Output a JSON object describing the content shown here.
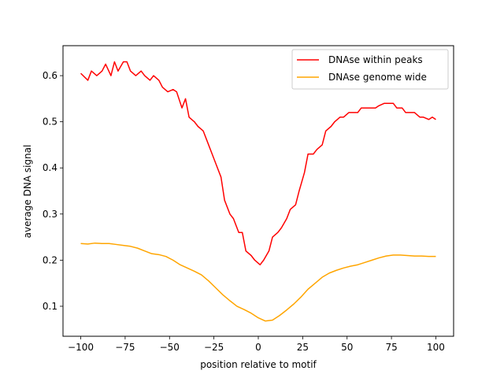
{
  "chart_data": {
    "type": "line",
    "xlabel": "position relative to motif",
    "ylabel": "average DNA signal",
    "xlim": [
      -110,
      110
    ],
    "ylim": [
      0.035,
      0.665
    ],
    "xticks": [
      -100,
      -75,
      -50,
      -25,
      0,
      25,
      50,
      75,
      100
    ],
    "yticks": [
      0.1,
      0.2,
      0.3,
      0.4,
      0.5,
      0.6
    ],
    "grid": false,
    "legend_position": "top-right",
    "series": [
      {
        "name": "DNAse within peaks",
        "color": "#ff0000",
        "x": [
          -100,
          -96,
          -94,
          -91,
          -88,
          -86,
          -83,
          -81,
          -79,
          -76,
          -74,
          -72,
          -69,
          -66,
          -64,
          -61,
          -59,
          -56,
          -54,
          -51,
          -48,
          -46,
          -43,
          -41,
          -39,
          -36,
          -34,
          -31,
          -29,
          -26,
          -24,
          -21,
          -19,
          -16,
          -14,
          -11,
          -9,
          -7,
          -4,
          -2,
          1,
          3,
          6,
          8,
          11,
          13,
          16,
          18,
          21,
          23,
          26,
          28,
          31,
          33,
          36,
          38,
          41,
          43,
          46,
          48,
          51,
          53,
          56,
          58,
          61,
          63,
          66,
          68,
          71,
          73,
          76,
          78,
          81,
          83,
          86,
          88,
          91,
          93,
          96,
          98,
          100
        ],
        "y": [
          0.605,
          0.59,
          0.61,
          0.6,
          0.61,
          0.625,
          0.6,
          0.63,
          0.61,
          0.63,
          0.63,
          0.61,
          0.6,
          0.61,
          0.6,
          0.59,
          0.6,
          0.59,
          0.575,
          0.565,
          0.57,
          0.565,
          0.53,
          0.55,
          0.51,
          0.5,
          0.49,
          0.48,
          0.46,
          0.43,
          0.41,
          0.38,
          0.33,
          0.3,
          0.29,
          0.26,
          0.26,
          0.22,
          0.21,
          0.2,
          0.19,
          0.2,
          0.22,
          0.25,
          0.26,
          0.27,
          0.29,
          0.31,
          0.32,
          0.35,
          0.39,
          0.43,
          0.43,
          0.44,
          0.45,
          0.48,
          0.49,
          0.5,
          0.51,
          0.51,
          0.52,
          0.52,
          0.52,
          0.53,
          0.53,
          0.53,
          0.53,
          0.535,
          0.54,
          0.54,
          0.54,
          0.53,
          0.53,
          0.52,
          0.52,
          0.52,
          0.51,
          0.51,
          0.505,
          0.51,
          0.505
        ]
      },
      {
        "name": "DNAse genome wide",
        "color": "#ffa500",
        "x": [
          -100,
          -96,
          -92,
          -88,
          -84,
          -80,
          -76,
          -72,
          -68,
          -64,
          -60,
          -56,
          -52,
          -48,
          -44,
          -40,
          -36,
          -32,
          -28,
          -24,
          -20,
          -16,
          -12,
          -8,
          -4,
          0,
          4,
          8,
          12,
          16,
          20,
          24,
          28,
          32,
          36,
          40,
          44,
          48,
          52,
          56,
          60,
          64,
          68,
          72,
          76,
          80,
          84,
          88,
          92,
          96,
          100
        ],
        "y": [
          0.236,
          0.235,
          0.237,
          0.236,
          0.236,
          0.234,
          0.232,
          0.23,
          0.226,
          0.22,
          0.214,
          0.212,
          0.208,
          0.2,
          0.19,
          0.183,
          0.176,
          0.168,
          0.155,
          0.14,
          0.125,
          0.112,
          0.1,
          0.093,
          0.085,
          0.075,
          0.068,
          0.07,
          0.08,
          0.092,
          0.105,
          0.12,
          0.137,
          0.15,
          0.163,
          0.172,
          0.178,
          0.183,
          0.187,
          0.19,
          0.195,
          0.2,
          0.205,
          0.209,
          0.211,
          0.211,
          0.21,
          0.209,
          0.209,
          0.208,
          0.208
        ]
      }
    ]
  }
}
